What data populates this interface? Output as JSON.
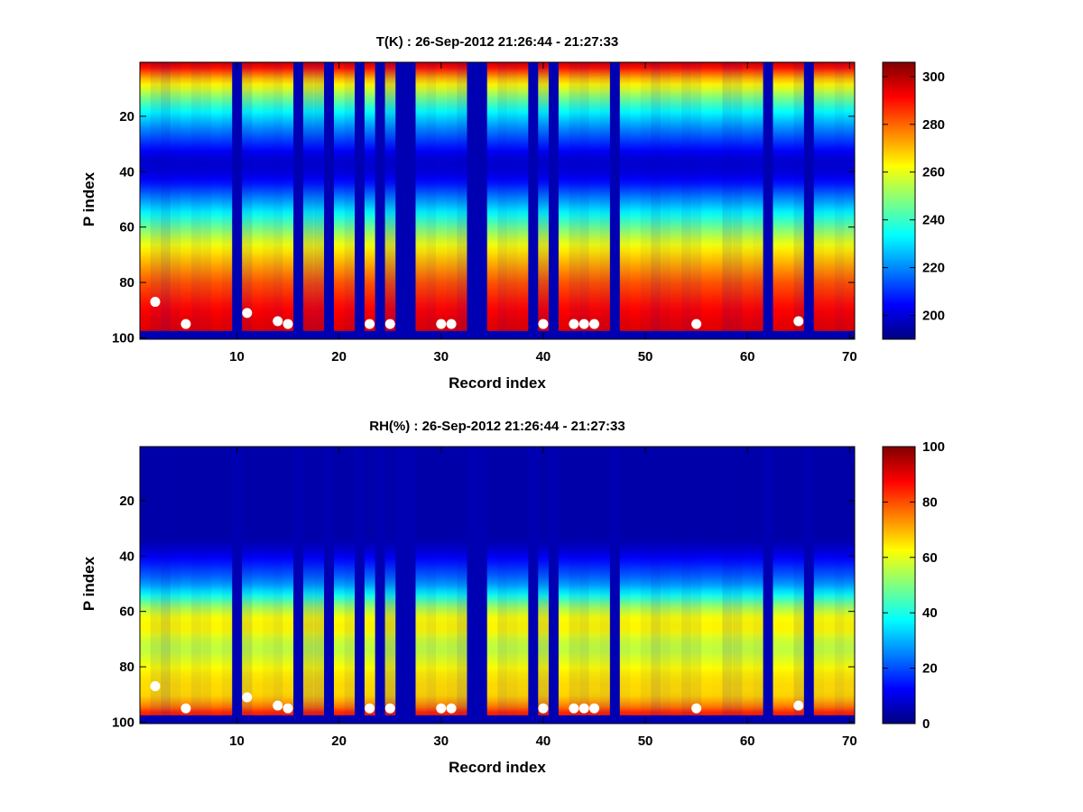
{
  "chart_data": [
    {
      "type": "heatmap",
      "title": "T(K) : 26-Sep-2012 21:26:44 - 21:27:33",
      "xlabel": "Record index",
      "ylabel": "P index",
      "xlim": [
        0.5,
        70.5
      ],
      "ylim": [
        0.5,
        100.5
      ],
      "xticks": [
        10,
        20,
        30,
        40,
        50,
        60,
        70
      ],
      "yticks": [
        20,
        40,
        60,
        80,
        100
      ],
      "colorbar": {
        "label": "",
        "clim": [
          190,
          306
        ],
        "ticks": [
          200,
          220,
          240,
          260,
          280,
          300
        ]
      },
      "missing_records": [
        10,
        16,
        19,
        22,
        24,
        26,
        27,
        33,
        34,
        39,
        41,
        47,
        62,
        66
      ],
      "surface_p_index": 97,
      "profile_stops_p": [
        [
          0,
          300
        ],
        [
          3,
          288
        ],
        [
          6,
          272
        ],
        [
          9,
          262
        ],
        [
          12,
          252
        ],
        [
          16,
          240
        ],
        [
          20,
          230
        ],
        [
          25,
          219
        ],
        [
          30,
          209
        ],
        [
          34,
          201
        ],
        [
          36,
          199
        ],
        [
          38,
          199
        ],
        [
          40,
          200
        ],
        [
          44,
          206
        ],
        [
          48,
          216
        ],
        [
          52,
          226
        ],
        [
          56,
          236
        ],
        [
          60,
          246
        ],
        [
          64,
          256
        ],
        [
          68,
          264
        ],
        [
          72,
          270
        ],
        [
          76,
          276
        ],
        [
          80,
          282
        ],
        [
          84,
          286
        ],
        [
          88,
          290
        ],
        [
          92,
          293
        ],
        [
          97,
          295
        ]
      ],
      "markers": [
        {
          "record": 2,
          "p_index": 87
        },
        {
          "record": 5,
          "p_index": 95
        },
        {
          "record": 11,
          "p_index": 91
        },
        {
          "record": 14,
          "p_index": 94
        },
        {
          "record": 15,
          "p_index": 95
        },
        {
          "record": 23,
          "p_index": 95
        },
        {
          "record": 25,
          "p_index": 95
        },
        {
          "record": 30,
          "p_index": 95
        },
        {
          "record": 31,
          "p_index": 95
        },
        {
          "record": 40,
          "p_index": 95
        },
        {
          "record": 43,
          "p_index": 95
        },
        {
          "record": 44,
          "p_index": 95
        },
        {
          "record": 45,
          "p_index": 95
        },
        {
          "record": 55,
          "p_index": 95
        },
        {
          "record": 65,
          "p_index": 94
        }
      ]
    },
    {
      "type": "heatmap",
      "title": "RH(%) : 26-Sep-2012 21:26:44 - 21:27:33",
      "xlabel": "Record index",
      "ylabel": "P index",
      "xlim": [
        0.5,
        70.5
      ],
      "ylim": [
        0.5,
        100.5
      ],
      "xticks": [
        10,
        20,
        30,
        40,
        50,
        60,
        70
      ],
      "yticks": [
        20,
        40,
        60,
        80,
        100
      ],
      "colorbar": {
        "label": "",
        "clim": [
          0,
          100
        ],
        "ticks": [
          0,
          20,
          40,
          60,
          80,
          100
        ]
      },
      "missing_records": [
        10,
        16,
        19,
        22,
        24,
        26,
        27,
        33,
        34,
        39,
        41,
        47,
        62,
        66
      ],
      "surface_p_index": 97,
      "profile_stops_p": [
        [
          0,
          4
        ],
        [
          34,
          4
        ],
        [
          38,
          8
        ],
        [
          42,
          14
        ],
        [
          46,
          20
        ],
        [
          50,
          27
        ],
        [
          54,
          38
        ],
        [
          58,
          52
        ],
        [
          62,
          62
        ],
        [
          66,
          64
        ],
        [
          70,
          58
        ],
        [
          74,
          56
        ],
        [
          78,
          60
        ],
        [
          82,
          64
        ],
        [
          86,
          66
        ],
        [
          90,
          66
        ],
        [
          94,
          74
        ],
        [
          97,
          86
        ]
      ],
      "markers": [
        {
          "record": 2,
          "p_index": 87
        },
        {
          "record": 5,
          "p_index": 95
        },
        {
          "record": 11,
          "p_index": 91
        },
        {
          "record": 14,
          "p_index": 94
        },
        {
          "record": 15,
          "p_index": 95
        },
        {
          "record": 23,
          "p_index": 95
        },
        {
          "record": 25,
          "p_index": 95
        },
        {
          "record": 30,
          "p_index": 95
        },
        {
          "record": 31,
          "p_index": 95
        },
        {
          "record": 40,
          "p_index": 95
        },
        {
          "record": 43,
          "p_index": 95
        },
        {
          "record": 44,
          "p_index": 95
        },
        {
          "record": 45,
          "p_index": 95
        },
        {
          "record": 55,
          "p_index": 95
        },
        {
          "record": 65,
          "p_index": 94
        }
      ]
    }
  ]
}
